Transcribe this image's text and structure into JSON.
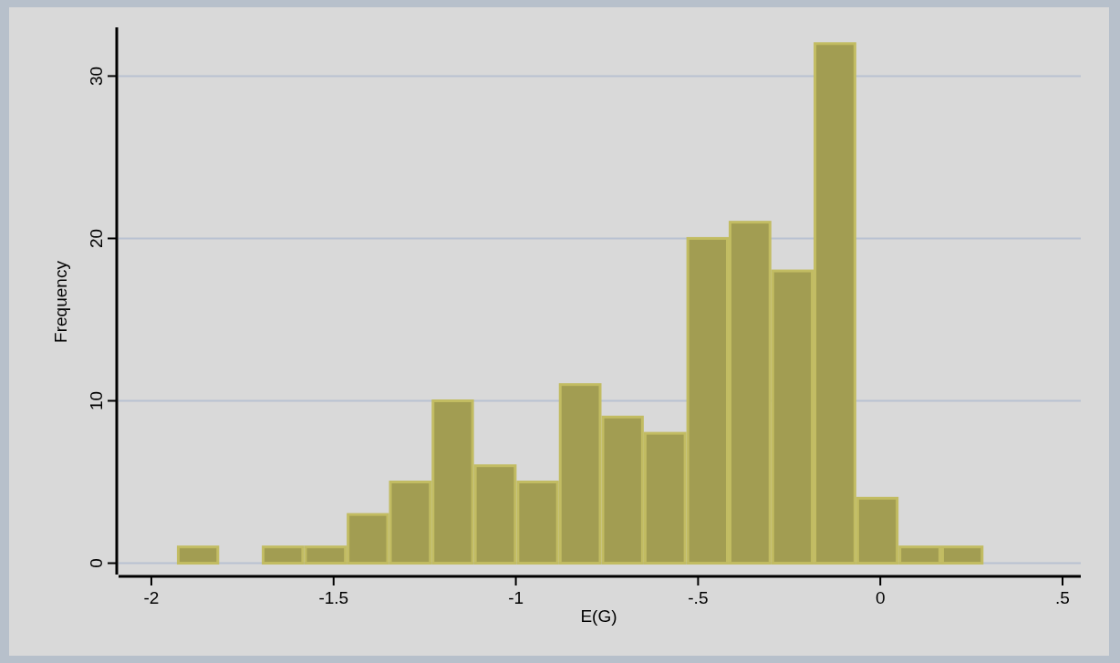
{
  "chart_data": {
    "type": "histogram",
    "xlabel": "E(G)",
    "ylabel": "Frequency",
    "color": "#a29d52",
    "bins": [
      -1.93,
      -1.814,
      -1.697,
      -1.581,
      -1.464,
      -1.348,
      -1.231,
      -1.115,
      -0.998,
      -0.882,
      -0.765,
      -0.649,
      -0.532,
      -0.416,
      -0.299,
      -0.183,
      -0.066,
      0.05,
      0.167,
      0.283
    ],
    "values": [
      1,
      0,
      1,
      1,
      3,
      5,
      10,
      6,
      5,
      11,
      9,
      8,
      20,
      21,
      18,
      32,
      4,
      1,
      1
    ],
    "xlim": [
      -2.09,
      0.55
    ],
    "ylim": [
      -0.7,
      33
    ],
    "xticks": [
      -2,
      -1.5,
      -1,
      {
        "value": -0.5,
        "label": "-.5"
      },
      0,
      {
        "value": 0.5,
        "label": ".5"
      }
    ],
    "yticks": [
      0,
      10,
      20,
      30
    ],
    "grid": "y"
  }
}
